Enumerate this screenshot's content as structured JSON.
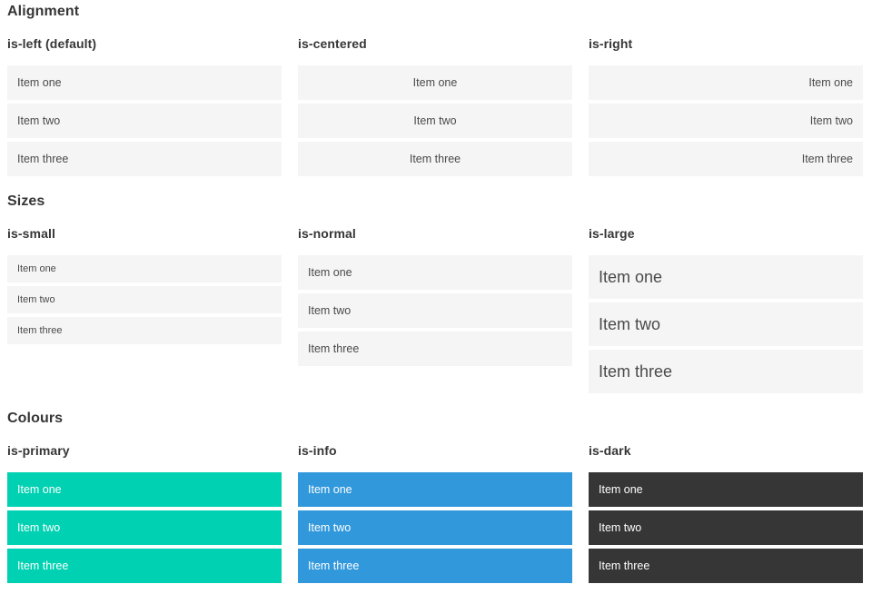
{
  "colors": {
    "primary": "#00d1b2",
    "info": "#3298dc",
    "dark": "#363636",
    "item-bg": "#f5f5f5",
    "item-text": "#4a4a4a",
    "heading-text": "#363636"
  },
  "sections": [
    {
      "title": "Alignment",
      "columns": [
        {
          "label": "is-left (default)",
          "items": [
            "Item one",
            "Item two",
            "Item three"
          ]
        },
        {
          "label": "is-centered",
          "items": [
            "Item one",
            "Item two",
            "Item three"
          ]
        },
        {
          "label": "is-right",
          "items": [
            "Item one",
            "Item two",
            "Item three"
          ]
        }
      ]
    },
    {
      "title": "Sizes",
      "columns": [
        {
          "label": "is-small",
          "items": [
            "Item one",
            "Item two",
            "Item three"
          ]
        },
        {
          "label": "is-normal",
          "items": [
            "Item one",
            "Item two",
            "Item three"
          ]
        },
        {
          "label": "is-large",
          "items": [
            "Item one",
            "Item two",
            "Item three"
          ]
        }
      ]
    },
    {
      "title": "Colours",
      "columns": [
        {
          "label": "is-primary",
          "items": [
            "Item one",
            "Item two",
            "Item three"
          ]
        },
        {
          "label": "is-info",
          "items": [
            "Item one",
            "Item two",
            "Item three"
          ]
        },
        {
          "label": "is-dark",
          "items": [
            "Item one",
            "Item two",
            "Item three"
          ]
        }
      ]
    }
  ]
}
